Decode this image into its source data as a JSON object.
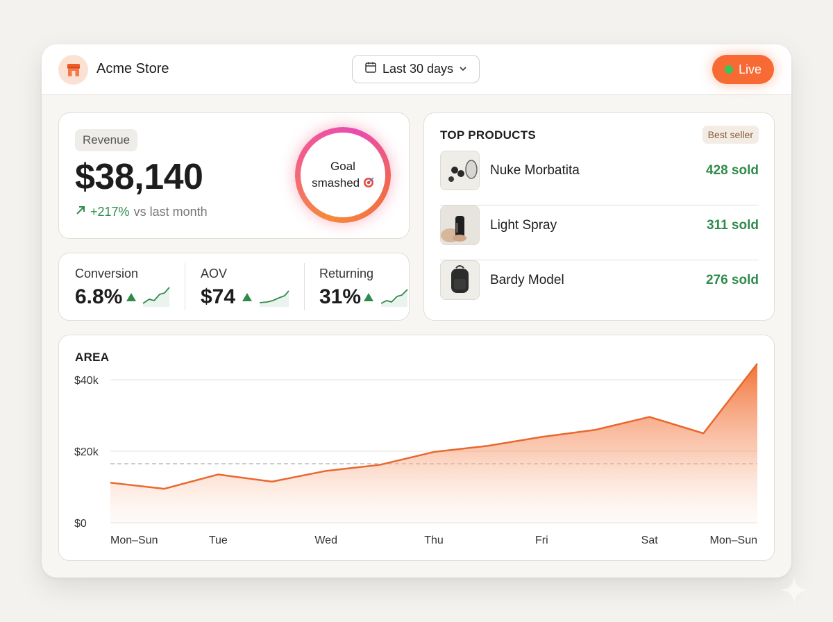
{
  "header": {
    "store_name": "Acme Store",
    "store_icon": "storefront-icon",
    "date_range": "Last 30 days",
    "live_label": "Live",
    "accent": "#f76a33"
  },
  "revenue": {
    "label": "Revenue",
    "value": "$38,140",
    "change_pct": "+217%",
    "change_text": "vs last month",
    "goal_line1": "Goal",
    "goal_line2": "smashed"
  },
  "metrics": [
    {
      "label": "Conversion",
      "value": "6.8%",
      "trend": "up"
    },
    {
      "label": "AOV",
      "value": "$74",
      "trend": "up"
    },
    {
      "label": "Returning",
      "value": "31%",
      "trend": "up"
    }
  ],
  "products": {
    "title": "TOP PRODUCTS",
    "badge": "Best seller",
    "items": [
      {
        "name": "Nuke Morbatita",
        "sold": "428 sold"
      },
      {
        "name": "Light Spray",
        "sold": "311 sold"
      },
      {
        "name": "Bardy Model",
        "sold": "276 sold"
      }
    ]
  },
  "chart_data": {
    "type": "area",
    "title": "AREA",
    "x": [
      "Mon–Sun",
      "",
      "Tue",
      "",
      "Wed",
      "",
      "Thu",
      "",
      "Fri",
      "",
      "Sat",
      "",
      "Mon–Sun"
    ],
    "x_tick_labels": [
      "Mon–Sun",
      "Tue",
      "Wed",
      "Thu",
      "Fri",
      "Sat",
      "Mon–Sun"
    ],
    "values": [
      11200,
      9500,
      13500,
      11500,
      14500,
      16200,
      19800,
      21500,
      24000,
      26000,
      29600,
      25000,
      44500
    ],
    "y_tick_labels": [
      "$40k",
      "$20k",
      "$0"
    ],
    "ylim": [
      0,
      40000
    ],
    "reference_line": 16500,
    "color": "#e8682f",
    "grid": true
  }
}
